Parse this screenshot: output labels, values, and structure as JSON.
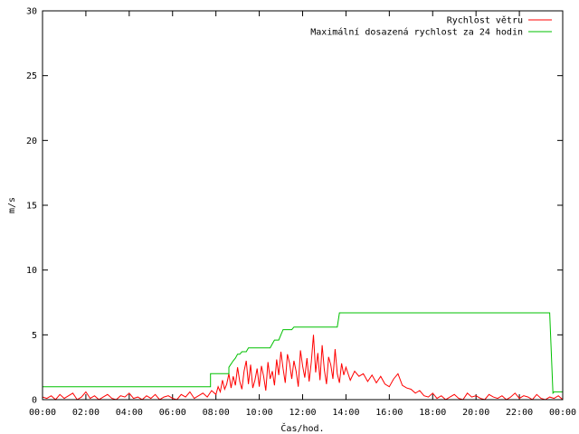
{
  "chart_data": {
    "type": "line",
    "title": "",
    "xlabel": "Čas/hod.",
    "ylabel": "m/s",
    "xlim": [
      0,
      24
    ],
    "ylim": [
      0,
      30
    ],
    "x_ticks": [
      {
        "v": 0,
        "label": "00:00"
      },
      {
        "v": 2,
        "label": "02:00"
      },
      {
        "v": 4,
        "label": "04:00"
      },
      {
        "v": 6,
        "label": "06:00"
      },
      {
        "v": 8,
        "label": "08:00"
      },
      {
        "v": 10,
        "label": "10:00"
      },
      {
        "v": 12,
        "label": "12:00"
      },
      {
        "v": 14,
        "label": "14:00"
      },
      {
        "v": 16,
        "label": "16:00"
      },
      {
        "v": 18,
        "label": "18:00"
      },
      {
        "v": 20,
        "label": "20:00"
      },
      {
        "v": 22,
        "label": "22:00"
      },
      {
        "v": 24,
        "label": "00:00"
      }
    ],
    "y_ticks": [
      {
        "v": 0,
        "label": "0"
      },
      {
        "v": 5,
        "label": "5"
      },
      {
        "v": 10,
        "label": "10"
      },
      {
        "v": 15,
        "label": "15"
      },
      {
        "v": 20,
        "label": "20"
      },
      {
        "v": 25,
        "label": "25"
      },
      {
        "v": 30,
        "label": "30"
      }
    ],
    "grid": false,
    "legend": "top-right",
    "series": [
      {
        "name": "Rychlost větru",
        "color": "#ff0000",
        "x": [
          0.0,
          0.2,
          0.4,
          0.6,
          0.8,
          1.0,
          1.2,
          1.4,
          1.6,
          1.8,
          2.0,
          2.2,
          2.4,
          2.6,
          2.8,
          3.0,
          3.2,
          3.4,
          3.6,
          3.8,
          4.0,
          4.2,
          4.4,
          4.6,
          4.8,
          5.0,
          5.2,
          5.4,
          5.6,
          5.8,
          6.0,
          6.2,
          6.4,
          6.6,
          6.8,
          7.0,
          7.2,
          7.4,
          7.6,
          7.8,
          8.0,
          8.1,
          8.2,
          8.3,
          8.4,
          8.5,
          8.6,
          8.7,
          8.8,
          8.9,
          9.0,
          9.1,
          9.2,
          9.3,
          9.4,
          9.5,
          9.6,
          9.7,
          9.8,
          9.9,
          10.0,
          10.1,
          10.2,
          10.3,
          10.4,
          10.5,
          10.6,
          10.7,
          10.8,
          10.9,
          11.0,
          11.1,
          11.2,
          11.3,
          11.4,
          11.5,
          11.6,
          11.7,
          11.8,
          11.9,
          12.0,
          12.1,
          12.2,
          12.3,
          12.4,
          12.5,
          12.6,
          12.7,
          12.8,
          12.9,
          13.0,
          13.1,
          13.2,
          13.3,
          13.4,
          13.5,
          13.6,
          13.7,
          13.8,
          13.9,
          14.0,
          14.2,
          14.4,
          14.6,
          14.8,
          15.0,
          15.2,
          15.4,
          15.6,
          15.8,
          16.0,
          16.2,
          16.4,
          16.6,
          16.8,
          17.0,
          17.2,
          17.4,
          17.6,
          17.8,
          18.0,
          18.2,
          18.4,
          18.6,
          18.8,
          19.0,
          19.2,
          19.4,
          19.6,
          19.8,
          20.0,
          20.2,
          20.4,
          20.6,
          20.8,
          21.0,
          21.2,
          21.4,
          21.6,
          21.8,
          22.0,
          22.2,
          22.4,
          22.6,
          22.8,
          23.0,
          23.2,
          23.4,
          23.6,
          23.8,
          24.0
        ],
        "y": [
          0.2,
          0.1,
          0.3,
          0.0,
          0.4,
          0.1,
          0.3,
          0.5,
          0.0,
          0.2,
          0.6,
          0.1,
          0.3,
          0.0,
          0.2,
          0.4,
          0.1,
          0.0,
          0.3,
          0.2,
          0.5,
          0.1,
          0.2,
          0.0,
          0.3,
          0.1,
          0.4,
          0.0,
          0.2,
          0.3,
          0.1,
          0.0,
          0.4,
          0.2,
          0.6,
          0.1,
          0.3,
          0.5,
          0.2,
          0.7,
          0.4,
          1.0,
          0.6,
          1.5,
          0.8,
          1.2,
          2.0,
          0.9,
          1.8,
          1.1,
          2.5,
          1.4,
          0.8,
          2.2,
          3.0,
          1.2,
          2.7,
          0.9,
          1.5,
          2.4,
          1.0,
          2.6,
          1.8,
          0.7,
          2.9,
          1.6,
          2.2,
          1.1,
          3.1,
          1.9,
          3.7,
          2.4,
          1.3,
          3.5,
          2.8,
          1.6,
          3.0,
          2.2,
          1.0,
          3.8,
          2.6,
          1.7,
          3.2,
          1.4,
          2.9,
          5.0,
          2.1,
          3.6,
          1.5,
          4.2,
          2.3,
          1.2,
          3.3,
          2.7,
          1.6,
          3.9,
          2.0,
          1.3,
          2.8,
          1.9,
          2.5,
          1.5,
          2.2,
          1.8,
          2.0,
          1.4,
          1.9,
          1.3,
          1.8,
          1.2,
          1.0,
          1.6,
          2.0,
          1.1,
          0.9,
          0.8,
          0.5,
          0.7,
          0.3,
          0.2,
          0.5,
          0.1,
          0.3,
          0.0,
          0.2,
          0.4,
          0.1,
          0.0,
          0.5,
          0.2,
          0.3,
          0.1,
          0.0,
          0.4,
          0.2,
          0.1,
          0.3,
          0.0,
          0.2,
          0.5,
          0.1,
          0.3,
          0.2,
          0.0,
          0.4,
          0.1,
          0.0,
          0.2,
          0.1,
          0.3,
          0.0
        ]
      },
      {
        "name": "Maximální dosazená rychlost za 24 hodin",
        "color": "#00c000",
        "x": [
          0.0,
          7.75,
          7.75,
          8.6,
          8.6,
          8.8,
          8.9,
          9.0,
          9.1,
          9.2,
          9.3,
          9.4,
          9.5,
          9.6,
          9.7,
          9.8,
          9.9,
          10.0,
          10.1,
          10.2,
          10.3,
          10.4,
          10.5,
          10.6,
          10.7,
          10.8,
          10.9,
          11.0,
          11.1,
          11.2,
          11.3,
          11.4,
          11.5,
          11.6,
          11.7,
          11.8,
          11.9,
          12.0,
          12.1,
          12.2,
          12.3,
          12.4,
          12.5,
          12.6,
          12.7,
          12.8,
          12.9,
          13.0,
          13.1,
          13.2,
          13.3,
          13.4,
          13.5,
          13.6,
          13.7,
          13.8,
          13.9,
          14.0,
          15.0,
          16.0,
          17.0,
          18.0,
          19.0,
          20.0,
          21.0,
          22.0,
          23.0,
          23.4,
          23.55,
          23.6,
          23.7,
          24.0
        ],
        "y": [
          1.0,
          1.0,
          2.0,
          2.0,
          2.5,
          3.0,
          3.2,
          3.5,
          3.5,
          3.7,
          3.7,
          3.7,
          4.0,
          4.0,
          4.0,
          4.0,
          4.0,
          4.0,
          4.0,
          4.0,
          4.0,
          4.0,
          4.0,
          4.3,
          4.6,
          4.6,
          4.6,
          5.0,
          5.4,
          5.4,
          5.4,
          5.4,
          5.4,
          5.6,
          5.6,
          5.6,
          5.6,
          5.6,
          5.6,
          5.6,
          5.6,
          5.6,
          5.6,
          5.6,
          5.6,
          5.6,
          5.6,
          5.6,
          5.6,
          5.6,
          5.6,
          5.6,
          5.6,
          5.6,
          6.7,
          6.7,
          6.7,
          6.7,
          6.7,
          6.7,
          6.7,
          6.7,
          6.7,
          6.7,
          6.7,
          6.7,
          6.7,
          6.7,
          0.5,
          0.6,
          0.6,
          0.6
        ]
      }
    ]
  }
}
